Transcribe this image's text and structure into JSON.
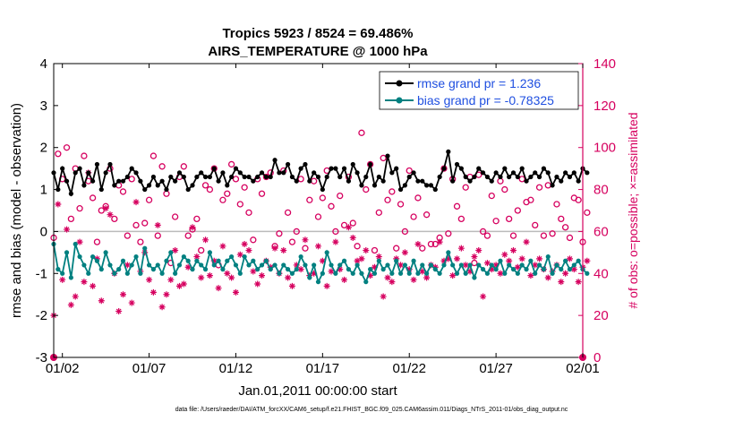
{
  "chart_data": {
    "type": "line",
    "title_line1": "Tropics 5923 / 8524 = 69.486%",
    "title_line2": "AIRS_TEMPERATURE @ 1000 hPa",
    "xlabel": "Jan.01,2011 00:00:00 start",
    "ylabel_left": "rmse and bias (model - observation)",
    "ylabel_right": "# of obs: o=possible; ×=assimilated",
    "footer": "data file: /Users/raeder/DAI/ATM_forcXX/CAM6_setup/f.e21.FHIST_BGC.f09_025.CAM6assim.011/Diags_NTrS_2011-01/obs_diag_output.nc",
    "x_tick_labels": [
      "01/02",
      "01/07",
      "01/12",
      "01/17",
      "01/22",
      "01/27",
      "02/01"
    ],
    "x_tick_days": [
      2,
      7,
      12,
      17,
      22,
      27,
      32
    ],
    "xlim_days": [
      1.5,
      32
    ],
    "ylim_left": [
      -3,
      4
    ],
    "yticks_left": [
      "-3",
      "-2",
      "-1",
      "0",
      "1",
      "2",
      "3",
      "4"
    ],
    "ylim_right": [
      0,
      140
    ],
    "yticks_right": [
      "0",
      "20",
      "40",
      "60",
      "80",
      "100",
      "120",
      "140"
    ],
    "legend": [
      "rmse grand pr = 1.236",
      "bias grand pr = -0.78325"
    ],
    "colors": {
      "rmse": "#000000",
      "bias": "#008080",
      "obs": "#d6005f",
      "zero_line": "#bbbbbb",
      "legend_text": "#1f4fe0"
    },
    "note": "Series are 6-hourly values (124 points), Jan 1.5 to Feb 1.25; values read approximately from the figure.",
    "rmse": [
      1.4,
      1.0,
      1.5,
      1.2,
      0.9,
      1.4,
      1.5,
      1.1,
      1.4,
      1.2,
      1.6,
      1.0,
      1.4,
      1.6,
      1.1,
      1.2,
      1.2,
      1.3,
      1.5,
      1.4,
      1.2,
      1.0,
      1.1,
      1.3,
      1.1,
      1.2,
      1.0,
      1.3,
      1.2,
      1.4,
      1.3,
      1.0,
      1.1,
      1.3,
      1.4,
      1.3,
      1.3,
      1.5,
      1.2,
      1.4,
      1.1,
      1.3,
      1.5,
      1.4,
      1.3,
      1.3,
      1.2,
      1.3,
      1.4,
      1.3,
      1.3,
      1.7,
      1.4,
      1.4,
      1.6,
      1.3,
      1.2,
      1.5,
      1.6,
      1.2,
      1.4,
      1.3,
      1.0,
      1.3,
      1.5,
      1.5,
      1.3,
      1.5,
      1.2,
      1.6,
      1.4,
      1.1,
      1.3,
      1.6,
      1.1,
      1.3,
      1.2,
      1.8,
      1.4,
      1.5,
      1.0,
      1.1,
      1.3,
      1.4,
      1.2,
      1.2,
      1.1,
      1.1,
      1.0,
      1.3,
      1.5,
      1.9,
      1.2,
      1.6,
      1.5,
      1.3,
      1.2,
      1.3,
      1.5,
      1.4,
      1.3,
      1.2,
      1.4,
      1.3,
      1.5,
      1.3,
      1.4,
      1.3,
      1.5,
      1.2,
      1.3,
      1.4,
      1.3,
      1.5,
      1.4,
      1.1,
      1.3,
      1.2,
      1.4,
      1.3,
      1.4,
      1.2,
      1.5,
      1.4
    ],
    "bias": [
      -0.3,
      -0.9,
      -1.0,
      -0.5,
      -1.1,
      -0.3,
      -0.6,
      -0.8,
      -1.0,
      -0.6,
      -0.7,
      -0.9,
      -0.5,
      -0.8,
      -1.0,
      -0.9,
      -0.7,
      -1.0,
      -0.8,
      -0.6,
      -1.0,
      -0.4,
      -0.8,
      -0.9,
      -0.8,
      -1.0,
      -0.7,
      -0.5,
      -1.0,
      -0.8,
      -0.6,
      -0.7,
      -0.9,
      -0.7,
      -0.8,
      -0.9,
      -0.5,
      -0.8,
      -0.7,
      -0.9,
      -0.7,
      -0.6,
      -0.8,
      -1.0,
      -0.6,
      -0.8,
      -0.7,
      -0.9,
      -0.8,
      -0.7,
      -0.9,
      -0.8,
      -1.0,
      -0.8,
      -0.9,
      -1.0,
      -0.9,
      -0.6,
      -0.8,
      -1.1,
      -0.8,
      -1.2,
      -1.0,
      -0.5,
      -0.8,
      -1.0,
      -0.8,
      -0.7,
      -0.9,
      -1.0,
      -0.8,
      -1.0,
      -1.2,
      -0.9,
      -1.0,
      -0.7,
      -0.9,
      -0.8,
      -1.0,
      -0.7,
      -1.0,
      -0.8,
      -1.0,
      -0.7,
      -1.0,
      -0.8,
      -1.0,
      -0.8,
      -0.9,
      -1.0,
      -0.8,
      -0.5,
      -0.8,
      -1.0,
      -0.8,
      -1.0,
      -0.8,
      -1.1,
      -0.8,
      -0.9,
      -1.0,
      -0.8,
      -0.9,
      -0.7,
      -1.0,
      -0.8,
      -0.9,
      -1.0,
      -0.8,
      -0.9,
      -0.7,
      -1.0,
      -0.8,
      -0.9,
      -0.6,
      -1.0,
      -0.8,
      -0.9,
      -0.7,
      -0.9,
      -0.8,
      -0.7,
      -0.9,
      -1.0
    ],
    "possible": [
      57,
      97,
      85,
      100,
      66,
      90,
      71,
      96,
      84,
      76,
      55,
      70,
      72,
      90,
      66,
      82,
      79,
      58,
      85,
      63,
      55,
      64,
      75,
      96,
      58,
      91,
      78,
      45,
      67,
      86,
      91,
      58,
      61,
      66,
      51,
      82,
      80,
      90,
      44,
      75,
      78,
      92,
      85,
      73,
      81,
      69,
      56,
      85,
      78,
      86,
      88,
      53,
      59,
      89,
      69,
      55,
      60,
      85,
      52,
      75,
      84,
      67,
      76,
      89,
      72,
      60,
      77,
      63,
      86,
      64,
      53,
      107,
      80,
      92,
      51,
      69,
      95,
      75,
      79,
      52,
      73,
      60,
      89,
      67,
      76,
      52,
      68,
      54,
      54,
      57,
      90,
      59,
      85,
      72,
      66,
      81,
      86,
      45,
      87,
      60,
      58,
      77,
      65,
      84,
      80,
      66,
      58,
      70,
      85,
      74,
      75,
      63,
      81,
      58,
      82,
      59,
      73,
      66,
      62,
      57,
      76,
      75,
      55,
      69
    ],
    "assimilated": [
      20,
      73,
      37,
      61,
      25,
      29,
      55,
      36,
      88,
      34,
      47,
      27,
      71,
      68,
      40,
      22,
      30,
      44,
      26,
      74,
      41,
      50,
      37,
      31,
      63,
      24,
      30,
      37,
      51,
      34,
      35,
      43,
      62,
      48,
      38,
      56,
      39,
      46,
      33,
      53,
      40,
      38,
      31,
      49,
      54,
      51,
      41,
      35,
      39,
      46,
      43,
      52,
      40,
      51,
      38,
      34,
      44,
      42,
      56,
      39,
      40,
      53,
      46,
      34,
      41,
      55,
      42,
      37,
      62,
      57,
      46,
      47,
      51,
      39,
      43,
      48,
      29,
      38,
      36,
      47,
      44,
      50,
      42,
      37,
      54,
      41,
      38,
      44,
      43,
      55,
      46,
      47,
      39,
      47,
      52,
      44,
      41,
      48,
      51,
      29,
      45,
      42,
      44,
      40,
      49,
      46,
      51,
      43,
      47,
      55,
      39,
      44,
      47,
      42,
      38,
      41,
      44,
      36,
      40,
      47,
      42,
      36,
      43,
      46
    ]
  }
}
